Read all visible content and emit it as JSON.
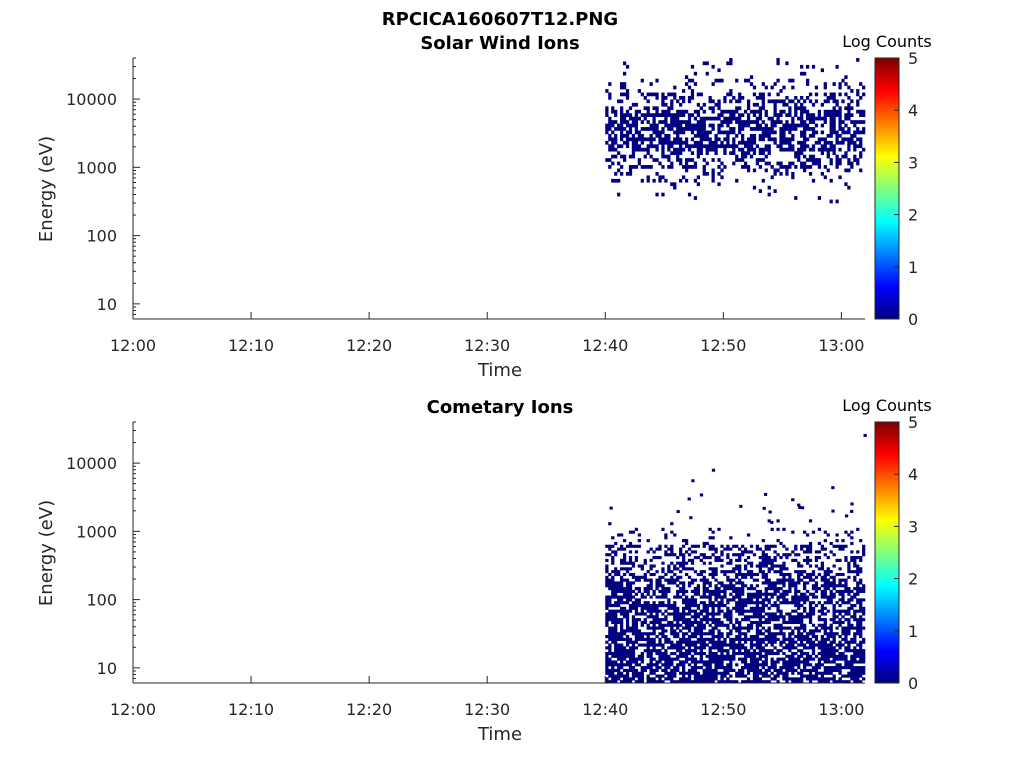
{
  "figure": {
    "title": "RPCICA160607T12.PNG"
  },
  "chart_data": [
    {
      "type": "heatmap",
      "title": "Solar Wind Ions",
      "xlabel": "Time",
      "ylabel": "Energy (eV)",
      "x_ticks": [
        "12:00",
        "12:10",
        "12:20",
        "12:30",
        "12:40",
        "12:50",
        "13:00"
      ],
      "x_range": [
        "12:00",
        "13:02"
      ],
      "yscale": "log",
      "y_ticks": [
        10,
        100,
        1000,
        10000
      ],
      "y_tick_labels": [
        "10",
        "100",
        "1000",
        "10000"
      ],
      "ylim": [
        6,
        40000
      ],
      "colorbar": {
        "label": "Log Counts",
        "range": [
          0,
          5
        ],
        "ticks": [
          "0",
          "1",
          "2",
          "3",
          "4",
          "5"
        ],
        "colormap": "jet"
      },
      "data_summary": {
        "time_start": "12:40",
        "time_end": "13:02",
        "energy_min": 300,
        "energy_max": 40000,
        "dense_energy_range": [
          1000,
          10000
        ],
        "typical_log_counts": 0
      }
    },
    {
      "type": "heatmap",
      "title": "Cometary Ions",
      "xlabel": "Time",
      "ylabel": "Energy (eV)",
      "x_ticks": [
        "12:00",
        "12:10",
        "12:20",
        "12:30",
        "12:40",
        "12:50",
        "13:00"
      ],
      "x_range": [
        "12:00",
        "13:02"
      ],
      "yscale": "log",
      "y_ticks": [
        10,
        100,
        1000,
        10000
      ],
      "y_tick_labels": [
        "10",
        "100",
        "1000",
        "10000"
      ],
      "ylim": [
        6,
        40000
      ],
      "colorbar": {
        "label": "Log Counts",
        "range": [
          0,
          5
        ],
        "ticks": [
          "0",
          "1",
          "2",
          "3",
          "4",
          "5"
        ],
        "colormap": "jet"
      },
      "data_summary": {
        "time_start": "12:40",
        "time_end": "13:02",
        "energy_min": 6,
        "energy_max": 1500,
        "sparse_outliers_up_to": 35000,
        "typical_log_counts": 0
      }
    }
  ]
}
